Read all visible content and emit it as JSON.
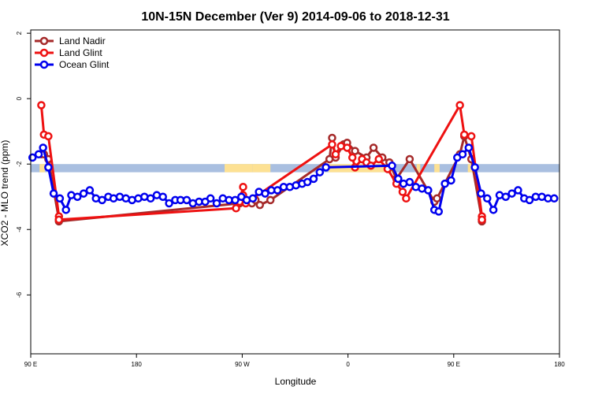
{
  "chart_data": {
    "type": "line",
    "title": "10N-15N December (Ver 9)   2014-09-06 to 2018-12-31",
    "xlabel": "Longitude",
    "ylabel": "XCO2 - MLO trend (ppm)",
    "x_range": [
      -90,
      210
    ],
    "y_range": [
      -7.8,
      2.1
    ],
    "x_ticks": [
      {
        "value": -90,
        "label": "90 E"
      },
      {
        "value": -30,
        "label": "180"
      },
      {
        "value": 30,
        "label": "90 W"
      },
      {
        "value": 90,
        "label": "0"
      },
      {
        "value": 150,
        "label": "90 E"
      },
      {
        "value": 210,
        "label": "180"
      }
    ],
    "y_ticks": [
      {
        "value": 2,
        "label": "2"
      },
      {
        "value": 0,
        "label": "0"
      },
      {
        "value": -2,
        "label": "-2"
      },
      {
        "value": -4,
        "label": "-4"
      },
      {
        "value": -6,
        "label": "-6"
      }
    ],
    "legend_position": "top-left",
    "land_band": {
      "ymin": -2.25,
      "ymax": -2.0,
      "color": "#a9bfe0",
      "land_color": "#fde193"
    },
    "series": [
      {
        "name": "Land Nadir",
        "color": "#a52a2a",
        "points": [
          [
            -84,
            -1.7
          ],
          [
            -82.5,
            -1.7
          ],
          [
            -80,
            -1.85
          ],
          [
            -74,
            -3.7
          ],
          [
            -74,
            -3.75
          ],
          [
            28.5,
            -3.2
          ],
          [
            35.5,
            -3.2
          ],
          [
            37.5,
            -3.1
          ],
          [
            40,
            -3.25
          ],
          [
            46,
            -3.1
          ],
          [
            79.5,
            -1.85
          ],
          [
            81,
            -1.2
          ],
          [
            83,
            -1.8
          ],
          [
            87.5,
            -1.4
          ],
          [
            89.5,
            -1.35
          ],
          [
            94,
            -1.6
          ],
          [
            100.5,
            -1.8
          ],
          [
            104.5,
            -1.5
          ],
          [
            109.5,
            -1.8
          ],
          [
            113.5,
            -1.95
          ],
          [
            117.5,
            -2.45
          ],
          [
            125,
            -1.85
          ],
          [
            139,
            -3.15
          ],
          [
            140.5,
            -3.05
          ],
          [
            153.5,
            -1.7
          ],
          [
            156,
            -1.15
          ],
          [
            160,
            -1.85
          ],
          [
            166,
            -3.7
          ],
          [
            166,
            -3.75
          ]
        ]
      },
      {
        "name": "Land Glint",
        "color": "#ee1111",
        "points": [
          [
            -84,
            -0.2
          ],
          [
            -82.5,
            -1.1
          ],
          [
            -80,
            -1.15
          ],
          [
            -74,
            -3.6
          ],
          [
            -74,
            -3.7
          ],
          [
            26.5,
            -3.35
          ],
          [
            28.5,
            -3.15
          ],
          [
            30.5,
            -2.7
          ],
          [
            30.5,
            -2.95
          ],
          [
            32,
            -3.2
          ],
          [
            81,
            -1.4
          ],
          [
            83,
            -1.7
          ],
          [
            86,
            -1.45
          ],
          [
            89.5,
            -1.5
          ],
          [
            92.5,
            -1.8
          ],
          [
            94,
            -2.1
          ],
          [
            98,
            -1.85
          ],
          [
            100.5,
            -1.95
          ],
          [
            103,
            -2.05
          ],
          [
            107.5,
            -1.85
          ],
          [
            112.5,
            -2.15
          ],
          [
            117.5,
            -2.6
          ],
          [
            121,
            -2.85
          ],
          [
            123,
            -3.05
          ],
          [
            153.5,
            -0.2
          ],
          [
            156,
            -1.1
          ],
          [
            160,
            -1.15
          ],
          [
            166,
            -3.6
          ],
          [
            166,
            -3.7
          ]
        ]
      },
      {
        "name": "Ocean Glint",
        "color": "#0000ee",
        "points": [
          [
            -89,
            -1.8
          ],
          [
            -85.5,
            -1.7
          ],
          [
            -83,
            -1.5
          ],
          [
            -80,
            -2.1
          ],
          [
            -77,
            -2.9
          ],
          [
            -73.5,
            -3.05
          ],
          [
            -70,
            -3.4
          ],
          [
            -67,
            -2.95
          ],
          [
            -63.5,
            -3.0
          ],
          [
            -60,
            -2.9
          ],
          [
            -56.5,
            -2.8
          ],
          [
            -53,
            -3.05
          ],
          [
            -49.5,
            -3.1
          ],
          [
            -46,
            -3.0
          ],
          [
            -43,
            -3.05
          ],
          [
            -39.5,
            -3.0
          ],
          [
            -36,
            -3.05
          ],
          [
            -32.5,
            -3.1
          ],
          [
            -29,
            -3.05
          ],
          [
            -25.5,
            -3.0
          ],
          [
            -22,
            -3.05
          ],
          [
            -18.5,
            -2.95
          ],
          [
            -15,
            -3.0
          ],
          [
            -11.5,
            -3.2
          ],
          [
            -8,
            -3.1
          ],
          [
            -5,
            -3.1
          ],
          [
            -1.5,
            -3.1
          ],
          [
            2,
            -3.2
          ],
          [
            5.5,
            -3.15
          ],
          [
            9,
            -3.15
          ],
          [
            12,
            -3.05
          ],
          [
            15.5,
            -3.2
          ],
          [
            19,
            -3.05
          ],
          [
            22.5,
            -3.1
          ],
          [
            26,
            -3.1
          ],
          [
            29.5,
            -3.0
          ],
          [
            32.5,
            -3.1
          ],
          [
            36,
            -3.05
          ],
          [
            39.5,
            -2.85
          ],
          [
            43,
            -2.9
          ],
          [
            46.5,
            -2.8
          ],
          [
            50,
            -2.8
          ],
          [
            53.5,
            -2.7
          ],
          [
            57,
            -2.7
          ],
          [
            60.5,
            -2.65
          ],
          [
            64,
            -2.6
          ],
          [
            67,
            -2.55
          ],
          [
            70.5,
            -2.45
          ],
          [
            74,
            -2.25
          ],
          [
            77.5,
            -2.1
          ],
          [
            115,
            -2.05
          ],
          [
            118.5,
            -2.45
          ],
          [
            121.5,
            -2.6
          ],
          [
            125,
            -2.55
          ],
          [
            128.5,
            -2.7
          ],
          [
            132,
            -2.75
          ],
          [
            135.5,
            -2.8
          ],
          [
            139,
            -3.4
          ],
          [
            141.5,
            -3.45
          ],
          [
            145,
            -2.6
          ],
          [
            148.5,
            -2.5
          ],
          [
            152,
            -1.8
          ],
          [
            155,
            -1.7
          ],
          [
            158.5,
            -1.5
          ],
          [
            162,
            -2.1
          ],
          [
            165.5,
            -2.9
          ],
          [
            169,
            -3.05
          ],
          [
            172.5,
            -3.4
          ],
          [
            176,
            -2.95
          ],
          [
            179.5,
            -3.0
          ],
          [
            183,
            -2.9
          ],
          [
            186.5,
            -2.8
          ],
          [
            190,
            -3.05
          ],
          [
            193,
            -3.1
          ],
          [
            196.5,
            -3.0
          ],
          [
            200,
            -3.0
          ],
          [
            203.5,
            -3.05
          ],
          [
            207,
            -3.05
          ]
        ]
      }
    ]
  }
}
